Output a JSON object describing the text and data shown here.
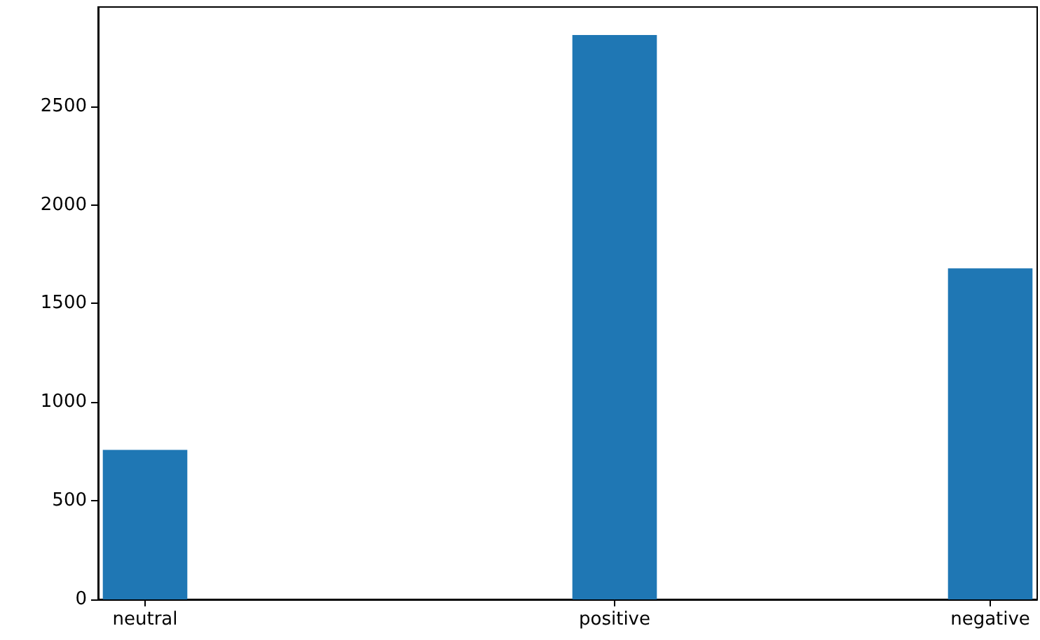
{
  "chart_data": {
    "type": "bar",
    "categories": [
      "neutral",
      null,
      null,
      null,
      null,
      "positive",
      null,
      null,
      null,
      "negative"
    ],
    "values": [
      758,
      0,
      0,
      0,
      0,
      2861,
      0,
      0,
      0,
      1678
    ],
    "color": "#1f77b4",
    "ylim": [
      0,
      3003
    ],
    "yticks": [
      0,
      500,
      1000,
      1500,
      2000,
      2500
    ],
    "grid": false
  }
}
